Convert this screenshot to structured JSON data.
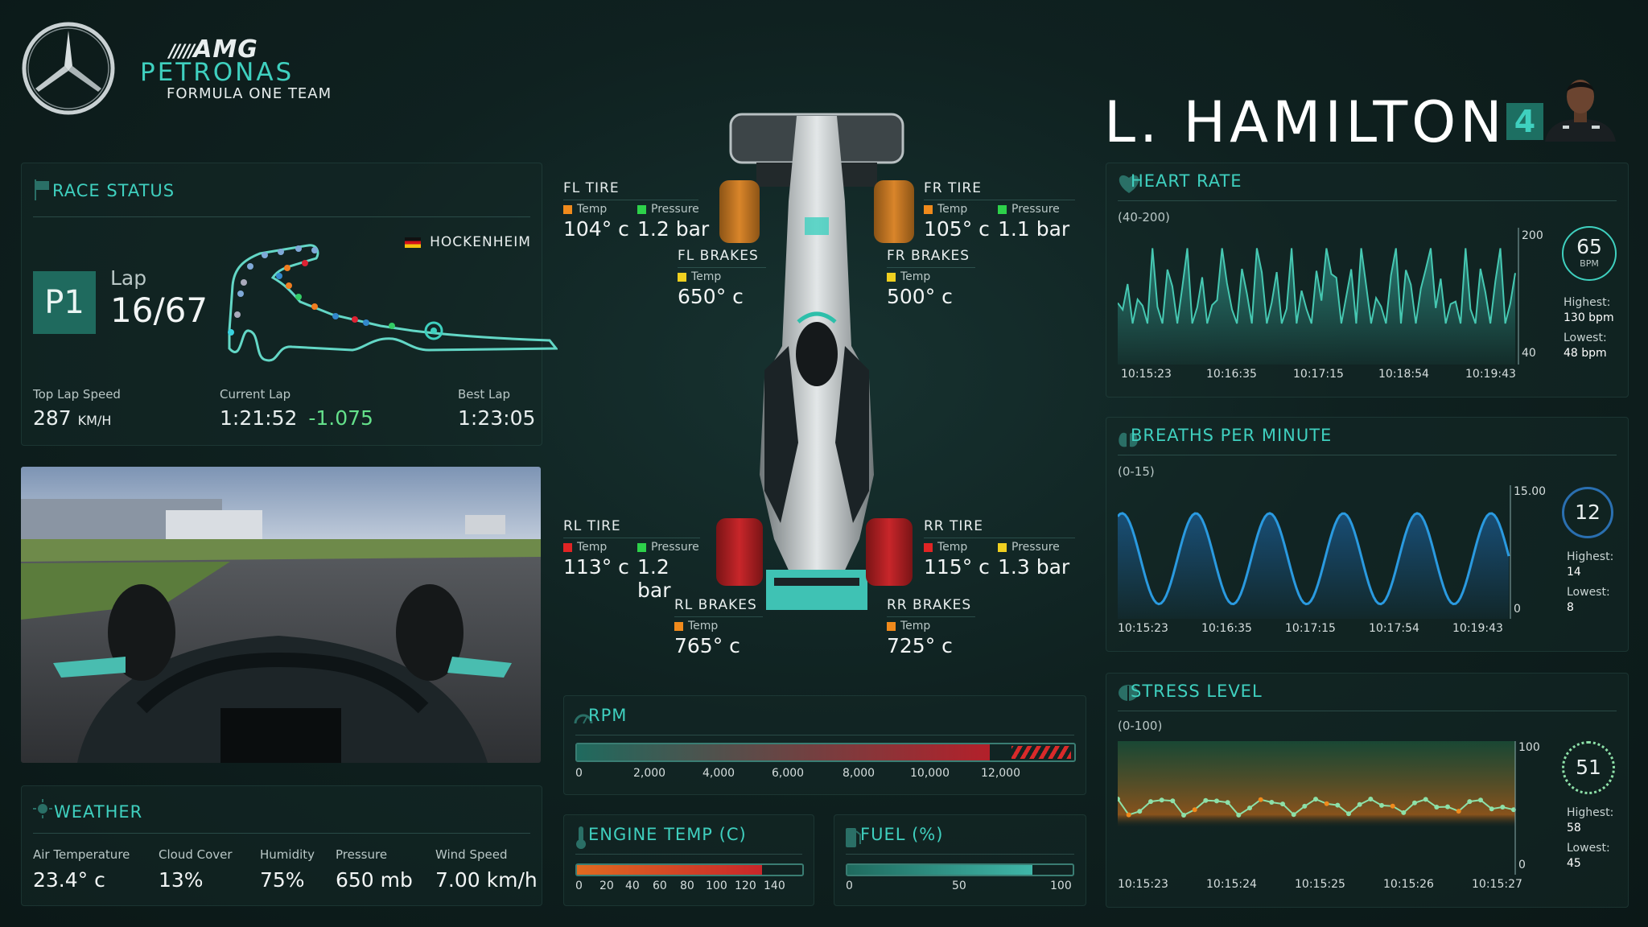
{
  "brand": {
    "amg": "AMG",
    "petronas": "PETRONAS",
    "team": "FORMULA ONE TEAM"
  },
  "driver": {
    "name": "L. HAMILTON",
    "number": "4"
  },
  "race_status": {
    "title": "RACE STATUS",
    "track": "HOCKENHEIM",
    "position": "P1",
    "lap_label": "Lap",
    "lap": "16/67",
    "top_speed_label": "Top Lap Speed",
    "top_speed": "287",
    "top_speed_unit": "KM/H",
    "current_lap_label": "Current Lap",
    "current_lap": "1:21:52",
    "delta": "-1.075",
    "best_lap_label": "Best Lap",
    "best_lap": "1:23:05"
  },
  "weather": {
    "title": "WEATHER",
    "items": [
      {
        "label": "Air Temperature",
        "value": "23.4° c"
      },
      {
        "label": "Cloud Cover",
        "value": "13%"
      },
      {
        "label": "Humidity",
        "value": "75%"
      },
      {
        "label": "Pressure",
        "value": "650 mb"
      },
      {
        "label": "Wind Speed",
        "value": "7.00 km/h"
      }
    ]
  },
  "tires": {
    "fl": {
      "title": "FL TIRE",
      "temp_label": "Temp",
      "temp": "104° c",
      "pressure_label": "Pressure",
      "pressure": "1.2 bar"
    },
    "fr": {
      "title": "FR TIRE",
      "temp_label": "Temp",
      "temp": "105° c",
      "pressure_label": "Pressure",
      "pressure": "1.1 bar"
    },
    "rl": {
      "title": "RL TIRE",
      "temp_label": "Temp",
      "temp": "113° c",
      "pressure_label": "Pressure",
      "pressure": "1.2 bar"
    },
    "rr": {
      "title": "RR TIRE",
      "temp_label": "Temp",
      "temp": "115° c",
      "pressure_label": "Pressure",
      "pressure": "1.3 bar"
    }
  },
  "brakes": {
    "fl": {
      "title": "FL BRAKES",
      "temp_label": "Temp",
      "temp": "650° c"
    },
    "fr": {
      "title": "FR BRAKES",
      "temp_label": "Temp",
      "temp": "500° c"
    },
    "rl": {
      "title": "RL BRAKES",
      "temp_label": "Temp",
      "temp": "765° c"
    },
    "rr": {
      "title": "RR BRAKES",
      "temp_label": "Temp",
      "temp": "725° c"
    }
  },
  "rpm": {
    "title": "RPM",
    "value_fraction": 0.83,
    "ticks": [
      "0",
      "2,000",
      "4,000",
      "6,000",
      "8,000",
      "10,000",
      "12,000"
    ]
  },
  "engine_temp": {
    "title": "ENGINE TEMP (C)",
    "value_fraction": 0.82,
    "ticks": [
      "0",
      "20",
      "40",
      "60",
      "80",
      "100",
      "120",
      "140"
    ]
  },
  "fuel": {
    "title": "FUEL (%)",
    "value_fraction": 0.82,
    "ticks": [
      "0",
      "50",
      "100"
    ]
  },
  "heart_rate": {
    "title": "HEART RATE",
    "range": "(40-200)",
    "max": "200",
    "min": "40",
    "value": "65",
    "unit": "BPM",
    "highest_label": "Highest:",
    "highest": "130 bpm",
    "lowest_label": "Lowest:",
    "lowest": "48 bpm",
    "times": [
      "10:15:23",
      "10:16:35",
      "10:17:15",
      "10:18:54",
      "10:19:43"
    ]
  },
  "breaths": {
    "title": "BREATHS PER MINUTE",
    "range": "(0-15)",
    "max": "15.00",
    "min": "0",
    "value": "12",
    "highest_label": "Highest:",
    "highest": "14",
    "lowest_label": "Lowest:",
    "lowest": "8",
    "times": [
      "10:15:23",
      "10:16:35",
      "10:17:15",
      "10:17:54",
      "10:19:43"
    ]
  },
  "stress": {
    "title": "STRESS LEVEL",
    "range": "(0-100)",
    "max": "100",
    "min": "0",
    "value": "51",
    "highest_label": "Highest:",
    "highest": "58",
    "lowest_label": "Lowest:",
    "lowest": "45",
    "times": [
      "10:15:23",
      "10:15:24",
      "10:15:25",
      "10:15:26",
      "10:15:27"
    ]
  },
  "colors": {
    "accent": "#3fd0bf",
    "orange": "#f08a1c",
    "green": "#2dd14a",
    "red": "#e02424",
    "yellow": "#f0d020",
    "tire_orange": "#d9852a",
    "tire_red": "#c8262a"
  }
}
